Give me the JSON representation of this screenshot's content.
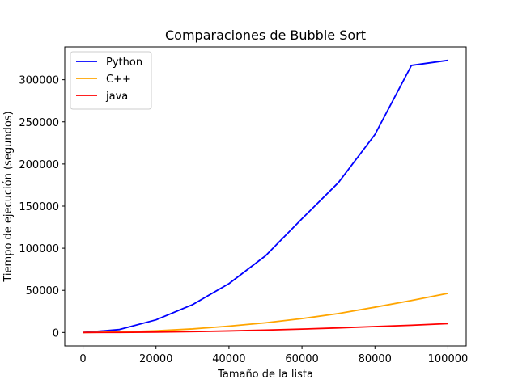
{
  "chart_data": {
    "type": "line",
    "title": "Comparaciones de Bubble Sort",
    "xlabel": "Tamaño de la lista",
    "ylabel": "Tiempo de ejecución (segundos)",
    "xlim": [
      -5000,
      105000
    ],
    "ylim": [
      -16000,
      339000
    ],
    "x_ticks": [
      0,
      20000,
      40000,
      60000,
      80000,
      100000
    ],
    "x_tick_labels": [
      "0",
      "20000",
      "40000",
      "60000",
      "80000",
      "100000"
    ],
    "y_ticks": [
      0,
      50000,
      100000,
      150000,
      200000,
      250000,
      300000
    ],
    "y_tick_labels": [
      "0",
      "50000",
      "100000",
      "150000",
      "200000",
      "250000",
      "300000"
    ],
    "grid": false,
    "legend_position": "top-left",
    "x": [
      0,
      10000,
      20000,
      30000,
      40000,
      50000,
      60000,
      70000,
      80000,
      90000,
      100000
    ],
    "series": [
      {
        "name": "Python",
        "color": "#0000ff",
        "values": [
          0,
          3500,
          15000,
          33000,
          58000,
          91000,
          135000,
          178000,
          235000,
          317000,
          323000
        ]
      },
      {
        "name": "C++",
        "color": "#ffa500",
        "values": [
          0,
          500,
          2000,
          4200,
          7500,
          11500,
          16500,
          22500,
          30000,
          38000,
          46500
        ]
      },
      {
        "name": "java",
        "color": "#ff0000",
        "values": [
          0,
          100,
          500,
          1000,
          1800,
          2800,
          4000,
          5400,
          7000,
          8600,
          10500
        ]
      }
    ]
  }
}
